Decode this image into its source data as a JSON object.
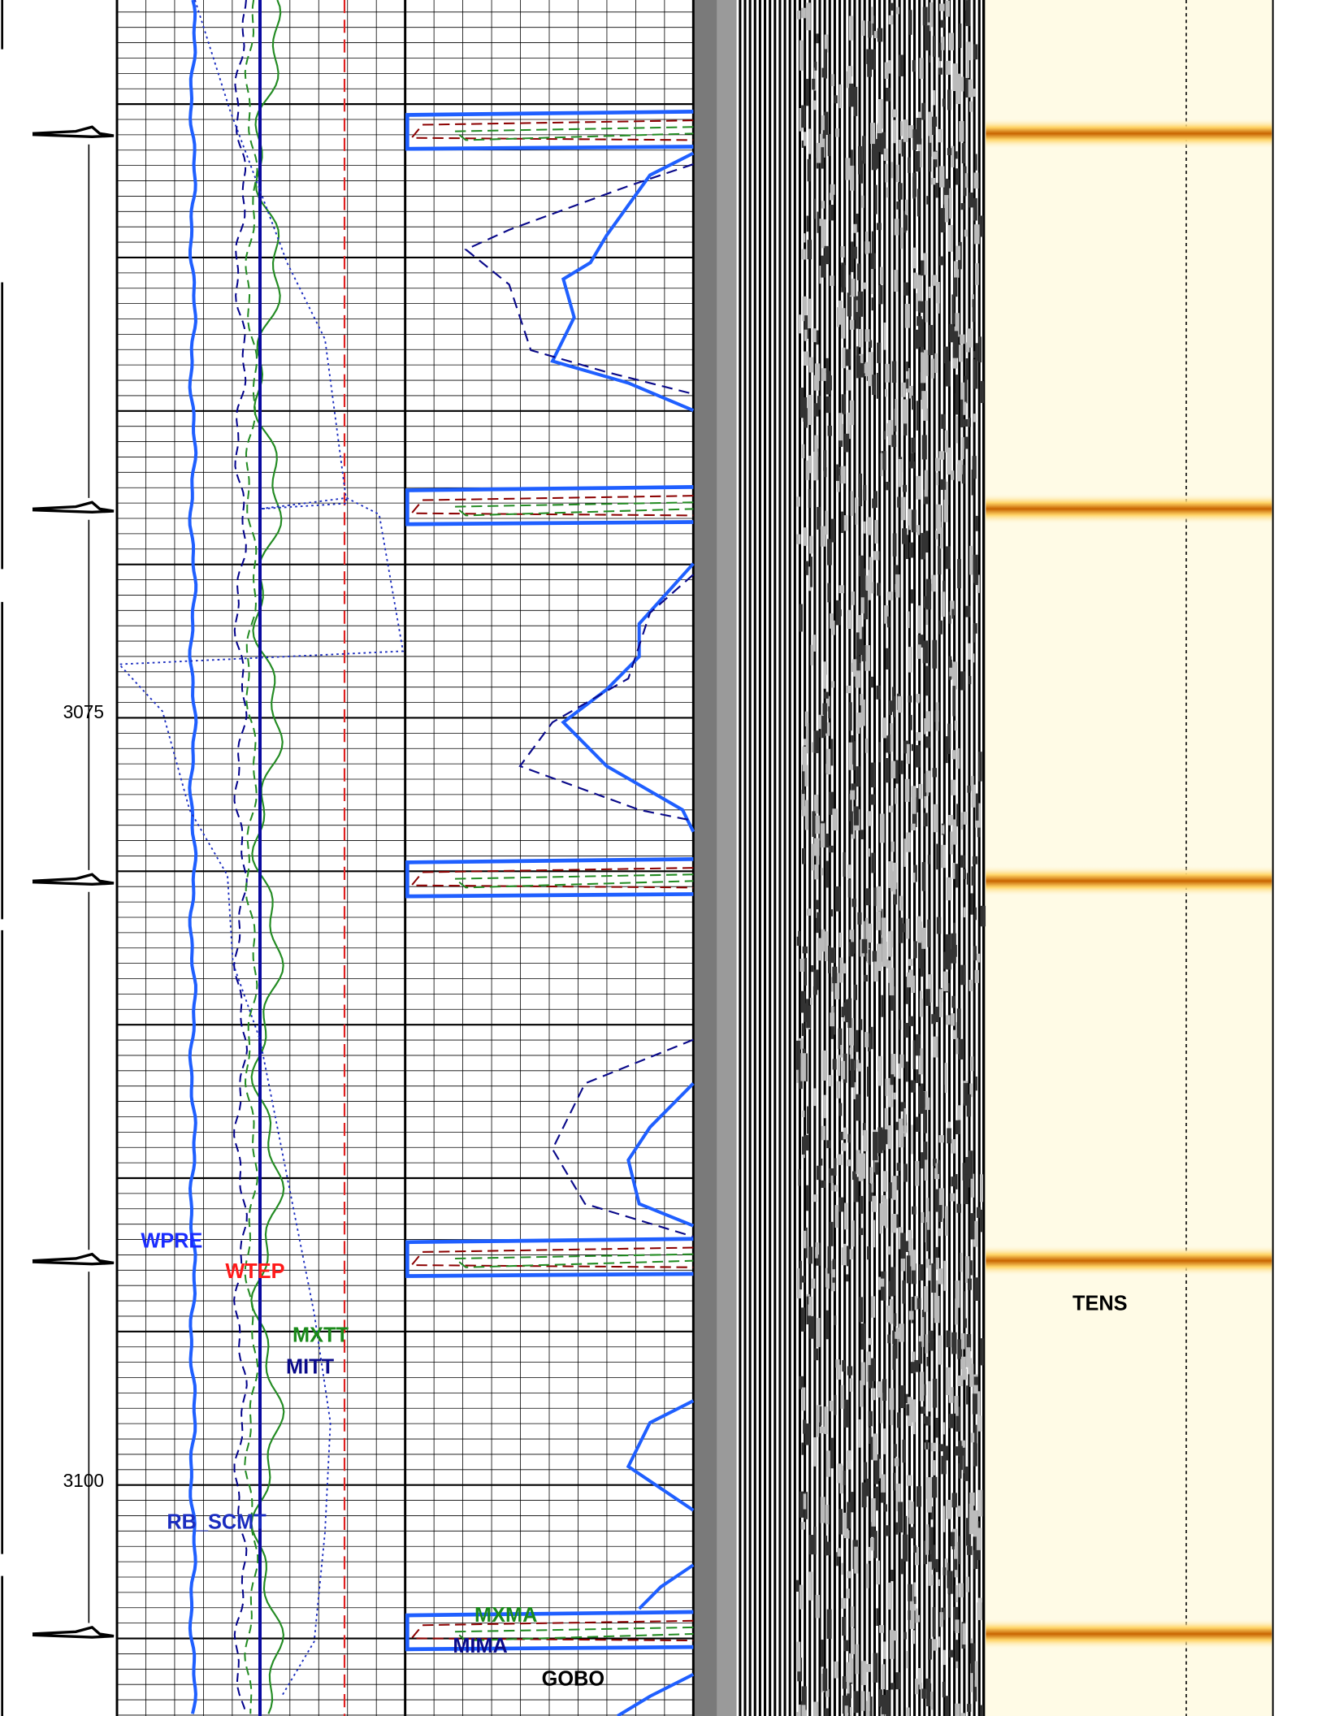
{
  "depth_labels": [
    3075,
    3100
  ],
  "curve_labels": [
    {
      "label": "WPRE",
      "color": "#1a2cff"
    },
    {
      "label": "WTEP",
      "color": "#ff1a1a"
    },
    {
      "label": "MXTT",
      "color": "#1a8a1a"
    },
    {
      "label": "MITT",
      "color": "#0a0a8a"
    },
    {
      "label": "RB_SCMT",
      "color": "#1a2cbf"
    },
    {
      "label": "MXMA",
      "color": "#1a8a1a"
    },
    {
      "label": "MIMA",
      "color": "#0a0a8a"
    },
    {
      "label": "GOBO",
      "color": "#000000"
    },
    {
      "label": "TENS",
      "color": "#000000"
    }
  ]
}
